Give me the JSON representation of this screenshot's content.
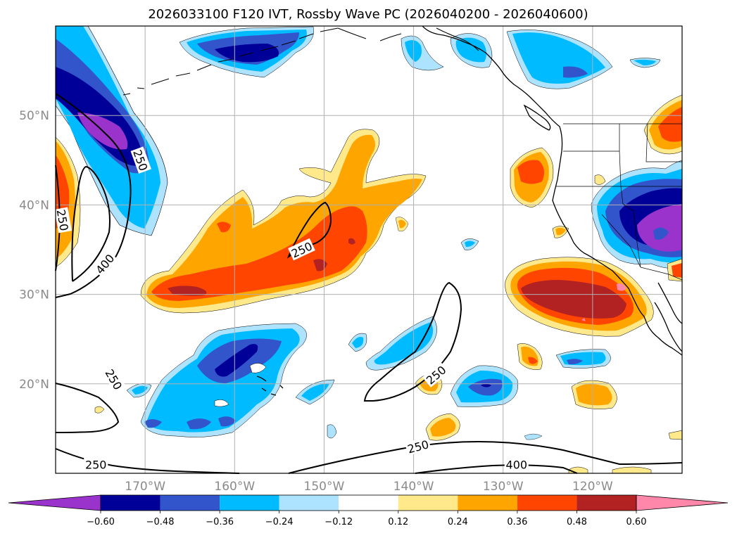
{
  "title": "2026033100 F120 IVT, Rossby Wave PC (2026040200 - 2026040600)",
  "map": {
    "lon_range": [
      -180,
      -110
    ],
    "lat_range": [
      10,
      60
    ],
    "lat_ticks": [
      {
        "value": 20,
        "label": "20°N"
      },
      {
        "value": 30,
        "label": "30°N"
      },
      {
        "value": 40,
        "label": "40°N"
      },
      {
        "value": 50,
        "label": "50°N"
      }
    ],
    "lon_ticks": [
      {
        "value": -170,
        "label": "170°W"
      },
      {
        "value": -160,
        "label": "160°W"
      },
      {
        "value": -150,
        "label": "150°W"
      },
      {
        "value": -140,
        "label": "140°W"
      },
      {
        "value": -130,
        "label": "130°W"
      },
      {
        "value": -120,
        "label": "120°W"
      }
    ]
  },
  "colorbar": {
    "colors": [
      "#9933cc",
      "#000099",
      "#3355cc",
      "#00bbff",
      "#aee3ff",
      "#ffffff",
      "#ffe98a",
      "#ffa500",
      "#ff4500",
      "#b22222",
      "#ff88aa"
    ],
    "tick_labels": [
      "−0.60",
      "−0.48",
      "−0.36",
      "−0.24",
      "−0.12",
      "0.12",
      "0.24",
      "0.36",
      "0.48",
      "0.60"
    ]
  },
  "contours": {
    "labels": [
      {
        "text": "250",
        "lon": -173.5,
        "lat": 20.5,
        "angle": 60
      },
      {
        "text": "250",
        "lon": -175.5,
        "lat": 11.0,
        "angle": 0
      },
      {
        "text": "250",
        "lon": -179.2,
        "lat": 38.3,
        "angle": 80
      },
      {
        "text": "400",
        "lon": -174.5,
        "lat": 33.4,
        "angle": -50
      },
      {
        "text": "250",
        "lon": -170.5,
        "lat": 45.0,
        "angle": 70
      },
      {
        "text": "250",
        "lon": -152.5,
        "lat": 35.0,
        "angle": -25
      },
      {
        "text": "250",
        "lon": -139.5,
        "lat": 13.0,
        "angle": -15
      },
      {
        "text": "250",
        "lon": -137.5,
        "lat": 21.0,
        "angle": -40
      },
      {
        "text": "400",
        "lon": -128.5,
        "lat": 11.0,
        "angle": 0
      }
    ]
  }
}
